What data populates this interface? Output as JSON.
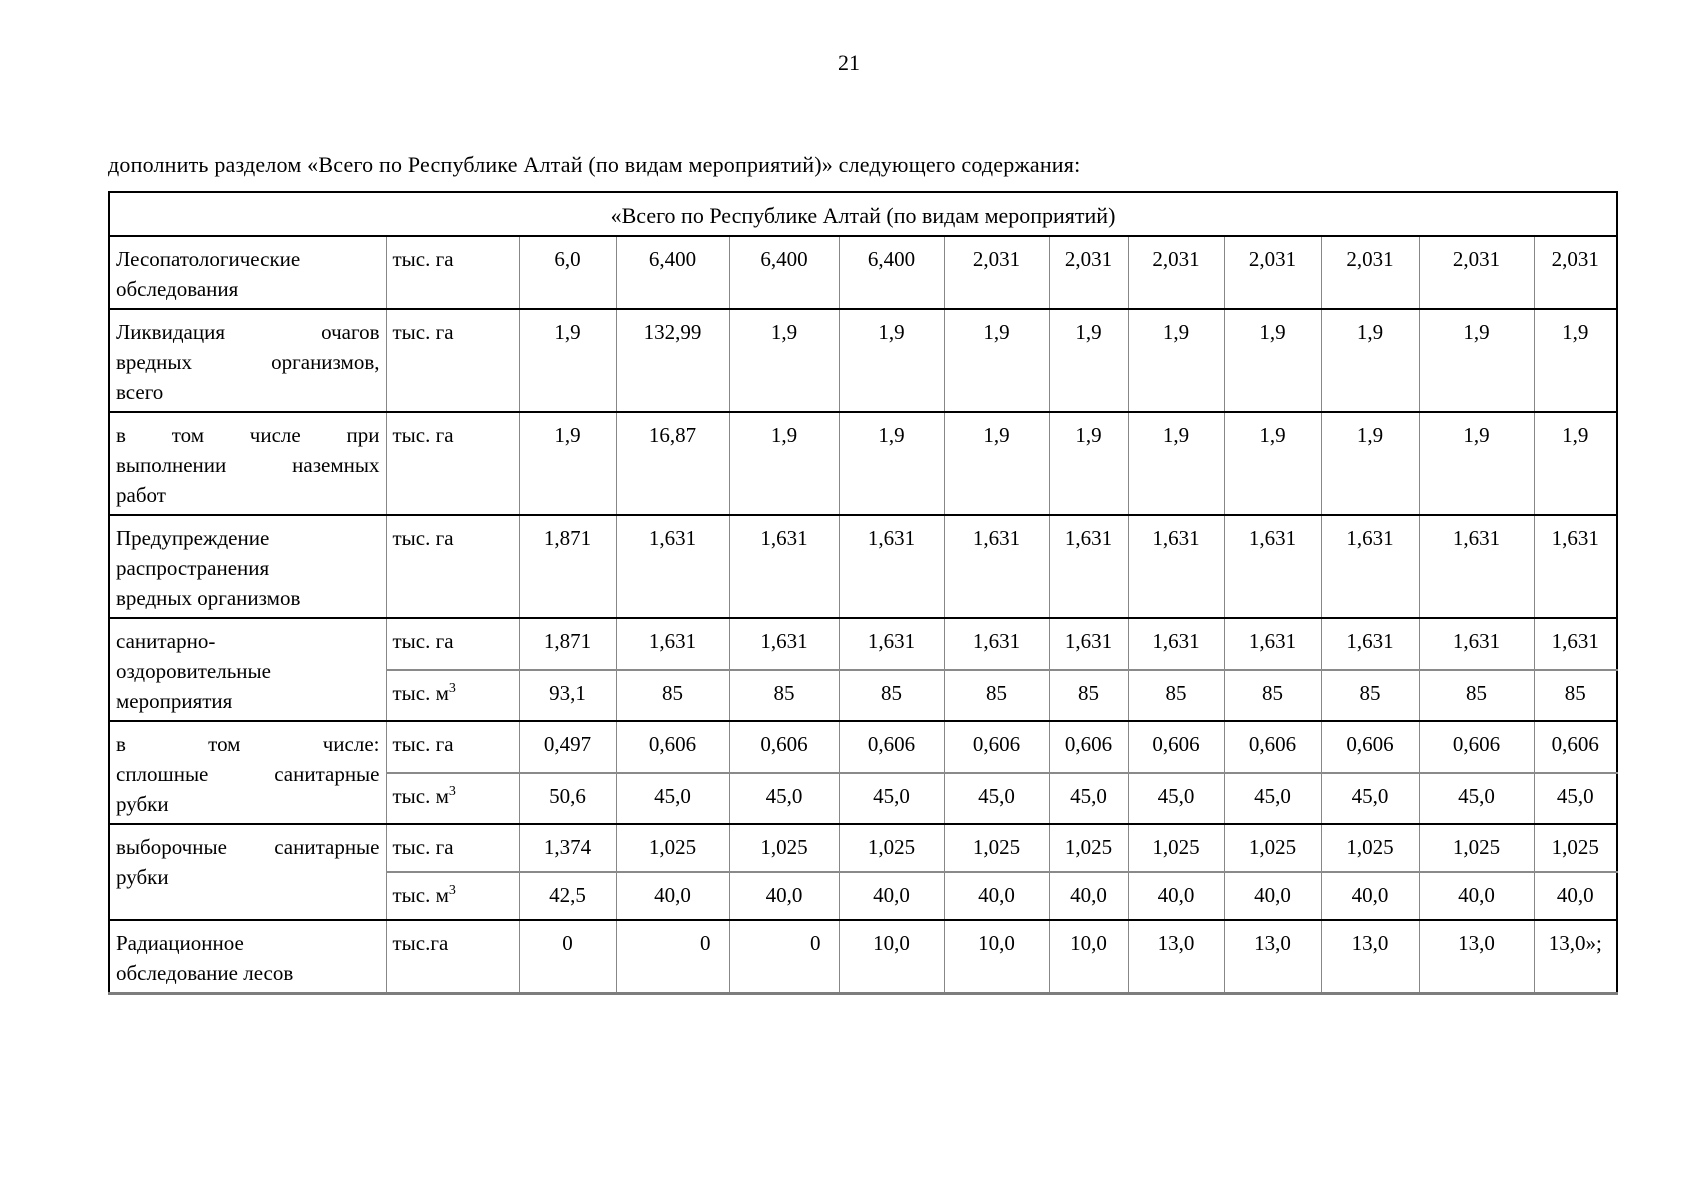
{
  "page": {
    "number": "21"
  },
  "intro": "дополнить разделом «Всего по Республике Алтай (по видам мероприятий)» следующего содержания:",
  "table": {
    "title": "«Всего по Республике Алтай (по видам мероприятий)",
    "rows": [
      {
        "label": "Лесопатологические\nобследования",
        "units": [
          {
            "unit": "тыс. га",
            "values": [
              "6,0",
              "6,400",
              "6,400",
              "6,400",
              "2,031",
              "2,031",
              "2,031",
              "2,031",
              "2,031",
              "2,031",
              "2,031"
            ]
          }
        ]
      },
      {
        "label": "Ликвидация очагов\nвредных организмов,\nвсего",
        "units": [
          {
            "unit": "тыс. га",
            "values": [
              "1,9",
              "132,99",
              "1,9",
              "1,9",
              "1,9",
              "1,9",
              "1,9",
              "1,9",
              "1,9",
              "1,9",
              "1,9"
            ]
          }
        ]
      },
      {
        "label": "в том числе при\nвыполнении наземных\nработ",
        "units": [
          {
            "unit": "тыс. га",
            "values": [
              "1,9",
              "16,87",
              "1,9",
              "1,9",
              "1,9",
              "1,9",
              "1,9",
              "1,9",
              "1,9",
              "1,9",
              "1,9"
            ]
          }
        ]
      },
      {
        "label": "Предупреждение\nраспространения\nвредных организмов",
        "units": [
          {
            "unit": "тыс. га",
            "values": [
              "1,871",
              "1,631",
              "1,631",
              "1,631",
              "1,631",
              "1,631",
              "1,631",
              "1,631",
              "1,631",
              "1,631",
              "1,631"
            ]
          }
        ]
      },
      {
        "label": "санитарно-\nоздоровительные\nмероприятия",
        "units": [
          {
            "unit": "тыс. га",
            "values": [
              "1,871",
              "1,631",
              "1,631",
              "1,631",
              "1,631",
              "1,631",
              "1,631",
              "1,631",
              "1,631",
              "1,631",
              "1,631"
            ]
          },
          {
            "unit": "тыс. м^3",
            "values": [
              "93,1",
              "85",
              "85",
              "85",
              "85",
              "85",
              "85",
              "85",
              "85",
              "85",
              "85"
            ]
          }
        ]
      },
      {
        "label": "в том числе:\nсплошные санитарные\nрубки",
        "units": [
          {
            "unit": "тыс. га",
            "values": [
              "0,497",
              "0,606",
              "0,606",
              "0,606",
              "0,606",
              "0,606",
              "0,606",
              "0,606",
              "0,606",
              "0,606",
              "0,606"
            ]
          },
          {
            "unit": "тыс. м^3",
            "values": [
              "50,6",
              "45,0",
              "45,0",
              "45,0",
              "45,0",
              "45,0",
              "45,0",
              "45,0",
              "45,0",
              "45,0",
              "45,0"
            ]
          }
        ]
      },
      {
        "label": "выборочные санитарные\nрубки",
        "units": [
          {
            "unit": "тыс. га",
            "values": [
              "1,374",
              "1,025",
              "1,025",
              "1,025",
              "1,025",
              "1,025",
              "1,025",
              "1,025",
              "1,025",
              "1,025",
              "1,025"
            ]
          },
          {
            "unit": "тыс. м^3",
            "values": [
              "42,5",
              "40,0",
              "40,0",
              "40,0",
              "40,0",
              "40,0",
              "40,0",
              "40,0",
              "40,0",
              "40,0",
              "40,0"
            ]
          }
        ]
      },
      {
        "label": "Радиационное\nобследование лесов",
        "units": [
          {
            "unit": "тыс.га",
            "values": [
              "0",
              "0",
              "0",
              "10,0",
              "10,0",
              "10,0",
              "13,0",
              "13,0",
              "13,0",
              "13,0",
              "13,0»;"
            ]
          }
        ]
      }
    ]
  }
}
